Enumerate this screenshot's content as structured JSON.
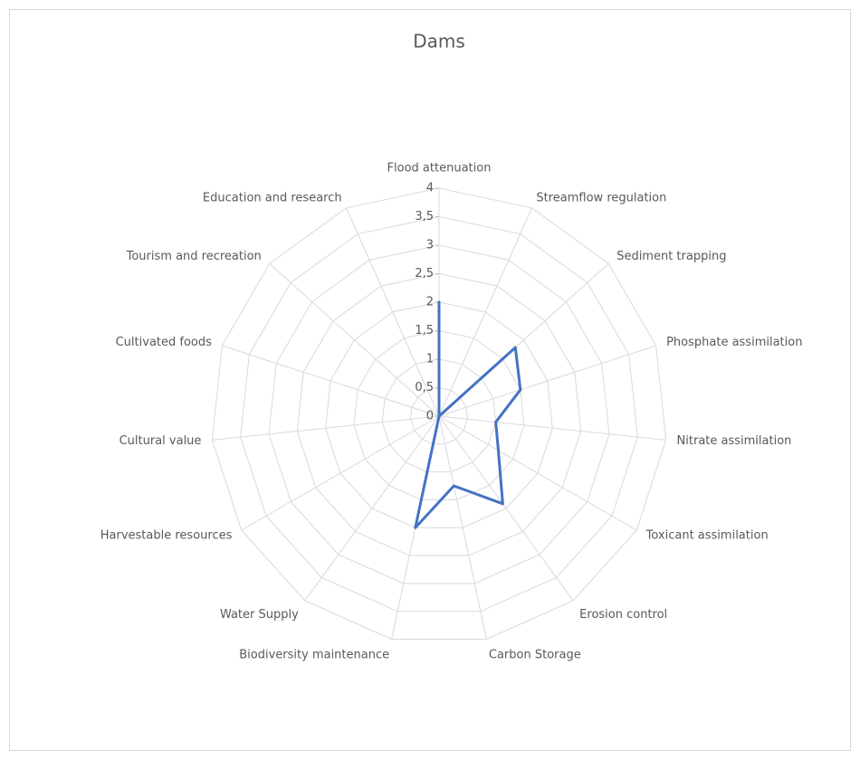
{
  "chart_data": {
    "type": "radar",
    "title": "Dams",
    "categories": [
      "Flood attenuation",
      "Streamflow regulation",
      "Sediment trapping",
      "Phosphate assimilation",
      "Nitrate assimilation",
      "Toxicant assimilation",
      "Erosion control",
      "Carbon Storage",
      "Biodiversity maintenance",
      "Water Supply",
      "Harvestable resources",
      "Cultural value",
      "Cultivated foods",
      "Tourism and recreation",
      "Education and research"
    ],
    "values": [
      2,
      0,
      1.8,
      1.5,
      1,
      1.2,
      1.9,
      1.25,
      2,
      0,
      0,
      0,
      0,
      0,
      0
    ],
    "color": "#4472c4",
    "ylim": [
      0,
      4
    ],
    "yticks": [
      0,
      {
        "value": 0.5,
        "label": "0,5"
      },
      1,
      {
        "value": 1.5,
        "label": "1,5"
      },
      2,
      {
        "value": 2.5,
        "label": "2,5"
      },
      3,
      {
        "value": 3.5,
        "label": "3,5"
      },
      4
    ],
    "grid": true
  }
}
